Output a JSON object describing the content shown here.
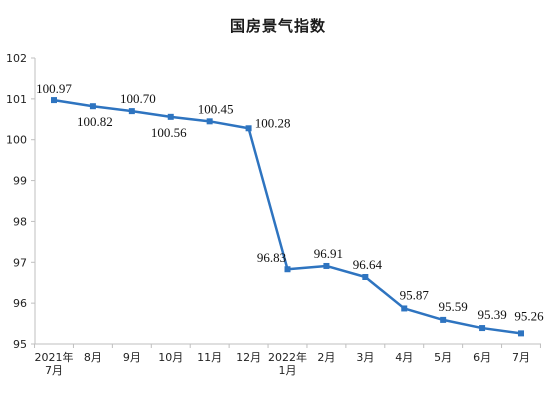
{
  "chart_data": {
    "type": "line",
    "title": "国房景气指数",
    "xlabel": "",
    "ylabel": "",
    "ylim": [
      95,
      102
    ],
    "y_ticks": [
      95,
      96,
      97,
      98,
      99,
      100,
      101,
      102
    ],
    "grid": false,
    "categories": [
      [
        "2021年",
        "7月"
      ],
      [
        "8月"
      ],
      [
        "9月"
      ],
      [
        "10月"
      ],
      [
        "11月"
      ],
      [
        "12月"
      ],
      [
        "2022年",
        "1月"
      ],
      [
        "2月"
      ],
      [
        "3月"
      ],
      [
        "4月"
      ],
      [
        "5月"
      ],
      [
        "6月"
      ],
      [
        "7月"
      ]
    ],
    "series": [
      {
        "values": [
          100.97,
          100.82,
          100.7,
          100.56,
          100.45,
          100.28,
          96.83,
          96.91,
          96.64,
          95.87,
          95.59,
          95.39,
          95.26
        ],
        "labels": [
          "100.97",
          "100.82",
          "100.70",
          "100.56",
          "100.45",
          "100.28",
          "96.83",
          "96.91",
          "96.64",
          "95.87",
          "95.59",
          "95.39",
          "95.26"
        ],
        "color": "#2e74c0"
      }
    ]
  }
}
